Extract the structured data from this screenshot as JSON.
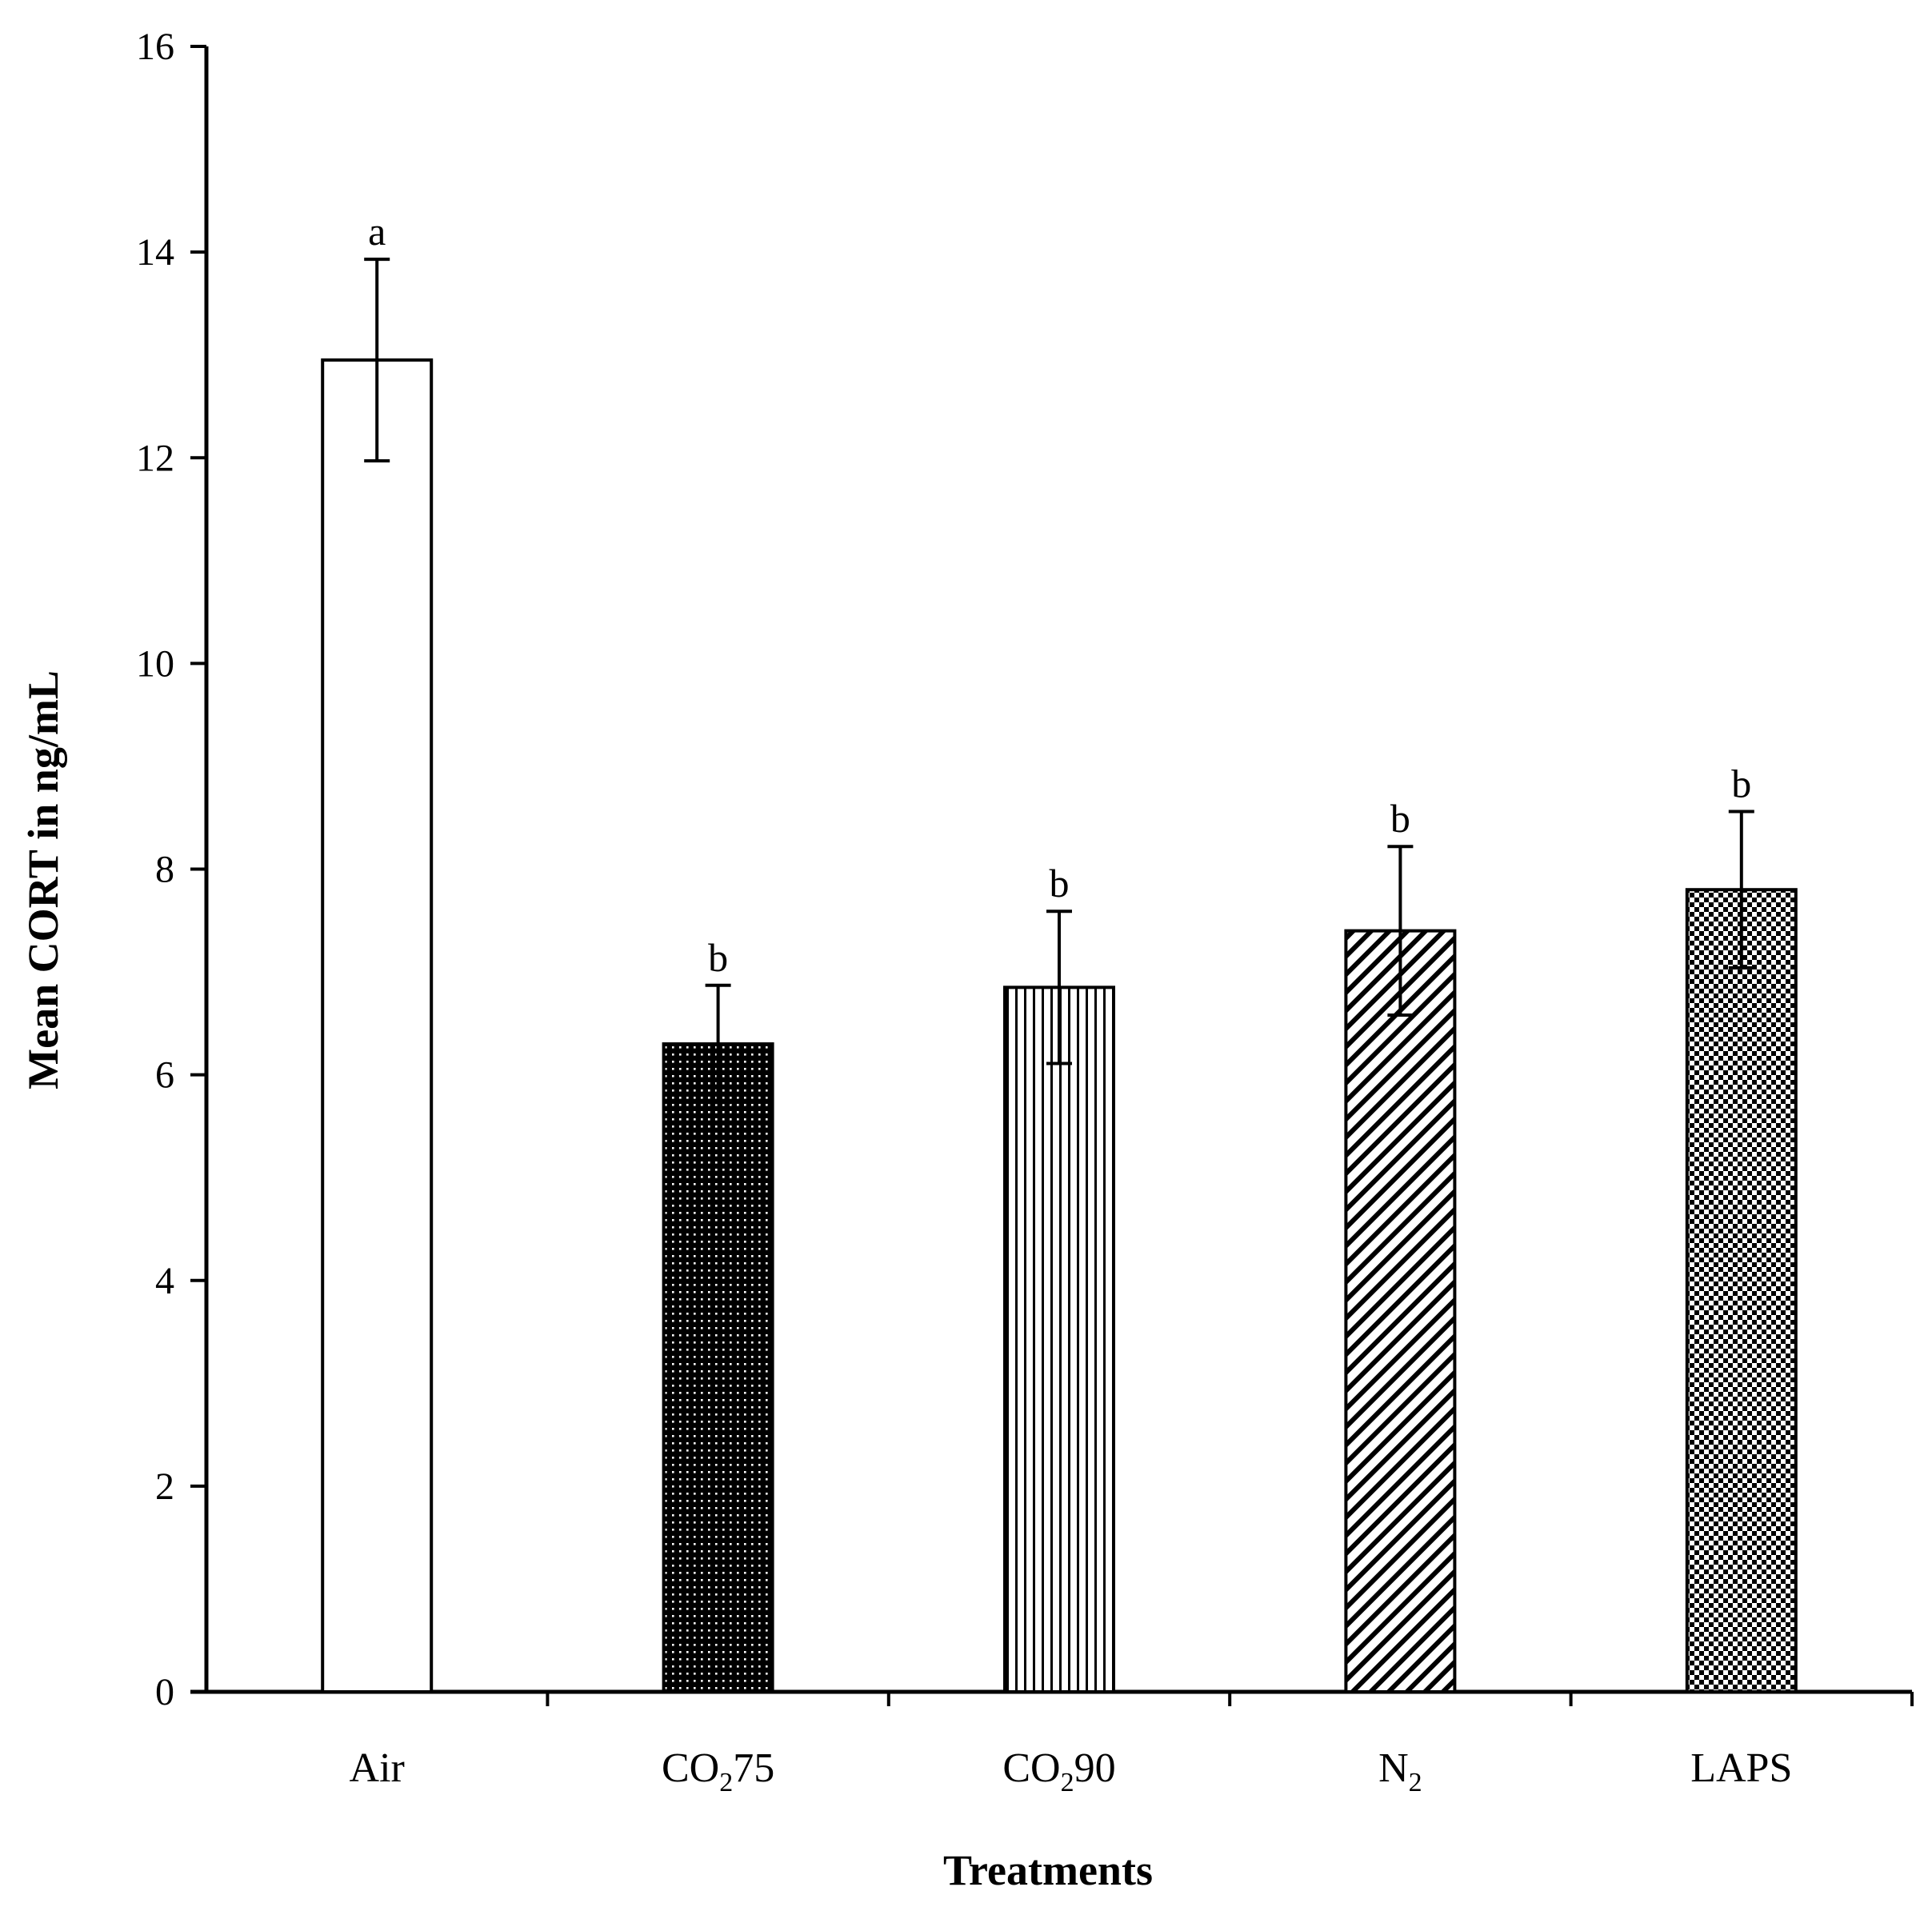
{
  "chart_data": {
    "type": "bar",
    "title": "",
    "xlabel": "Treatments",
    "ylabel": "Mean CORT in ng/mL",
    "ylim": [
      0,
      16
    ],
    "yticks": [
      0,
      2,
      4,
      6,
      8,
      10,
      12,
      14,
      16
    ],
    "grid": false,
    "bars": [
      {
        "label": "Air",
        "base": "Air",
        "sub": "",
        "suffix": "",
        "value": 12.95,
        "error": 0.98,
        "significance": "a",
        "pattern": "none"
      },
      {
        "label": "CO2 75",
        "base": "CO",
        "sub": "2",
        "suffix": "75",
        "value": 6.3,
        "error": 0.57,
        "significance": "b",
        "pattern": "dots"
      },
      {
        "label": "CO2 90",
        "base": "CO",
        "sub": "2",
        "suffix": "90",
        "value": 6.85,
        "error": 0.74,
        "significance": "b",
        "pattern": "vertical-lines"
      },
      {
        "label": "N2",
        "base": "N",
        "sub": "2",
        "suffix": "",
        "value": 7.4,
        "error": 0.82,
        "significance": "b",
        "pattern": "diagonal-lines"
      },
      {
        "label": "LAPS",
        "base": "LAPS",
        "sub": "",
        "suffix": "",
        "value": 7.8,
        "error": 0.76,
        "significance": "b",
        "pattern": "checkerboard"
      }
    ]
  }
}
